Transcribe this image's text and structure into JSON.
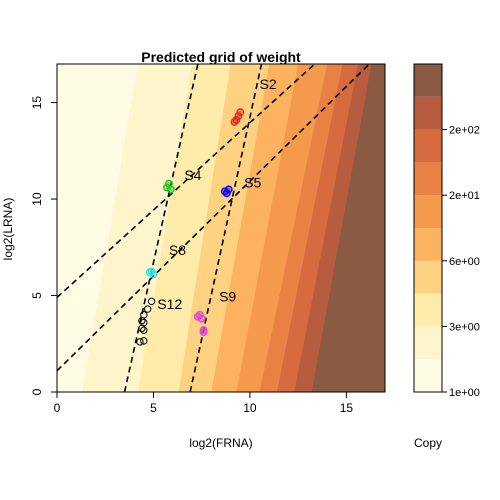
{
  "chart_data": {
    "type": "contour",
    "title": "Predicted grid of weight",
    "xlabel": "log2(FRNA)",
    "ylabel": "log2(LRNA)",
    "xlim": [
      0,
      17
    ],
    "ylim": [
      0,
      17
    ],
    "x_ticks": [
      0,
      5,
      10,
      15
    ],
    "y_ticks": [
      0,
      5,
      10,
      15
    ],
    "colorbar": {
      "labels": [
        "1e+00",
        "3e+00",
        "6e+00",
        "2e+01",
        "2e+02"
      ],
      "label_levels": [
        0,
        2,
        4,
        6,
        8
      ],
      "level_colors": [
        "#FFFBE4",
        "#FFF5CC",
        "#FFEBAA",
        "#FED280",
        "#FCB25F",
        "#F59A4D",
        "#E98145",
        "#D56B3E",
        "#B85C3F",
        "#8A5A43"
      ]
    },
    "contour_bands": {
      "bottom_x": [
        1.3,
        4.2,
        6.3,
        8.0,
        9.3,
        10.5,
        11.4,
        12.3,
        13.2,
        14.1
      ],
      "top_x": [
        4.2,
        7.0,
        9.0,
        11.0,
        12.5,
        14.0,
        14.8,
        15.6,
        16.3,
        17.0
      ]
    },
    "reference_lines": [
      {
        "x1": 0,
        "y1": 4.9,
        "x2": 17,
        "y2": 20.3
      },
      {
        "x1": 0,
        "y1": 1.1,
        "x2": 17,
        "y2": 17.8
      },
      {
        "x1": 3.5,
        "y1": 0,
        "x2": 7.3,
        "y2": 17
      },
      {
        "x1": 6.9,
        "y1": 0,
        "x2": 10.6,
        "y2": 17
      }
    ],
    "series": [
      {
        "name": "S2",
        "color": "#E0281E",
        "label_pos": [
          10.5,
          15.7
        ],
        "points": [
          [
            9.2,
            14.0
          ],
          [
            9.4,
            14.3
          ],
          [
            9.5,
            14.5
          ],
          [
            9.3,
            14.1
          ]
        ]
      },
      {
        "name": "S4",
        "color": "#18C818",
        "label_pos": [
          6.6,
          11.0
        ],
        "points": [
          [
            5.8,
            10.8
          ],
          [
            5.9,
            10.5
          ],
          [
            5.7,
            10.6
          ]
        ]
      },
      {
        "name": "S5",
        "color": "#0000FF",
        "label_pos": [
          9.7,
          10.6
        ],
        "points": [
          [
            8.7,
            10.4
          ],
          [
            8.9,
            10.5
          ],
          [
            8.8,
            10.3
          ]
        ]
      },
      {
        "name": "S8",
        "color": "#2EE0E8",
        "label_pos": [
          5.8,
          7.1
        ],
        "points": [
          [
            4.8,
            6.2
          ],
          [
            5.0,
            6.1
          ],
          [
            4.9,
            6.25
          ]
        ]
      },
      {
        "name": "S9",
        "color": "#E040E0",
        "label_pos": [
          8.4,
          4.7
        ],
        "points": [
          [
            7.3,
            3.9
          ],
          [
            7.5,
            3.8
          ],
          [
            7.6,
            3.1
          ],
          [
            7.6,
            3.2
          ],
          [
            7.4,
            4.0
          ]
        ]
      },
      {
        "name": "S12",
        "color": "#000000",
        "label_pos": [
          5.2,
          4.3
        ],
        "points": [
          [
            4.9,
            4.7
          ],
          [
            4.7,
            4.3
          ],
          [
            4.5,
            4.0
          ],
          [
            4.4,
            3.7
          ],
          [
            4.5,
            3.6
          ],
          [
            4.4,
            3.3
          ],
          [
            4.5,
            3.2
          ],
          [
            4.3,
            2.6
          ],
          [
            4.5,
            2.65
          ]
        ]
      }
    ],
    "grid": false,
    "legend": "none"
  },
  "overlay_label": "Copy"
}
